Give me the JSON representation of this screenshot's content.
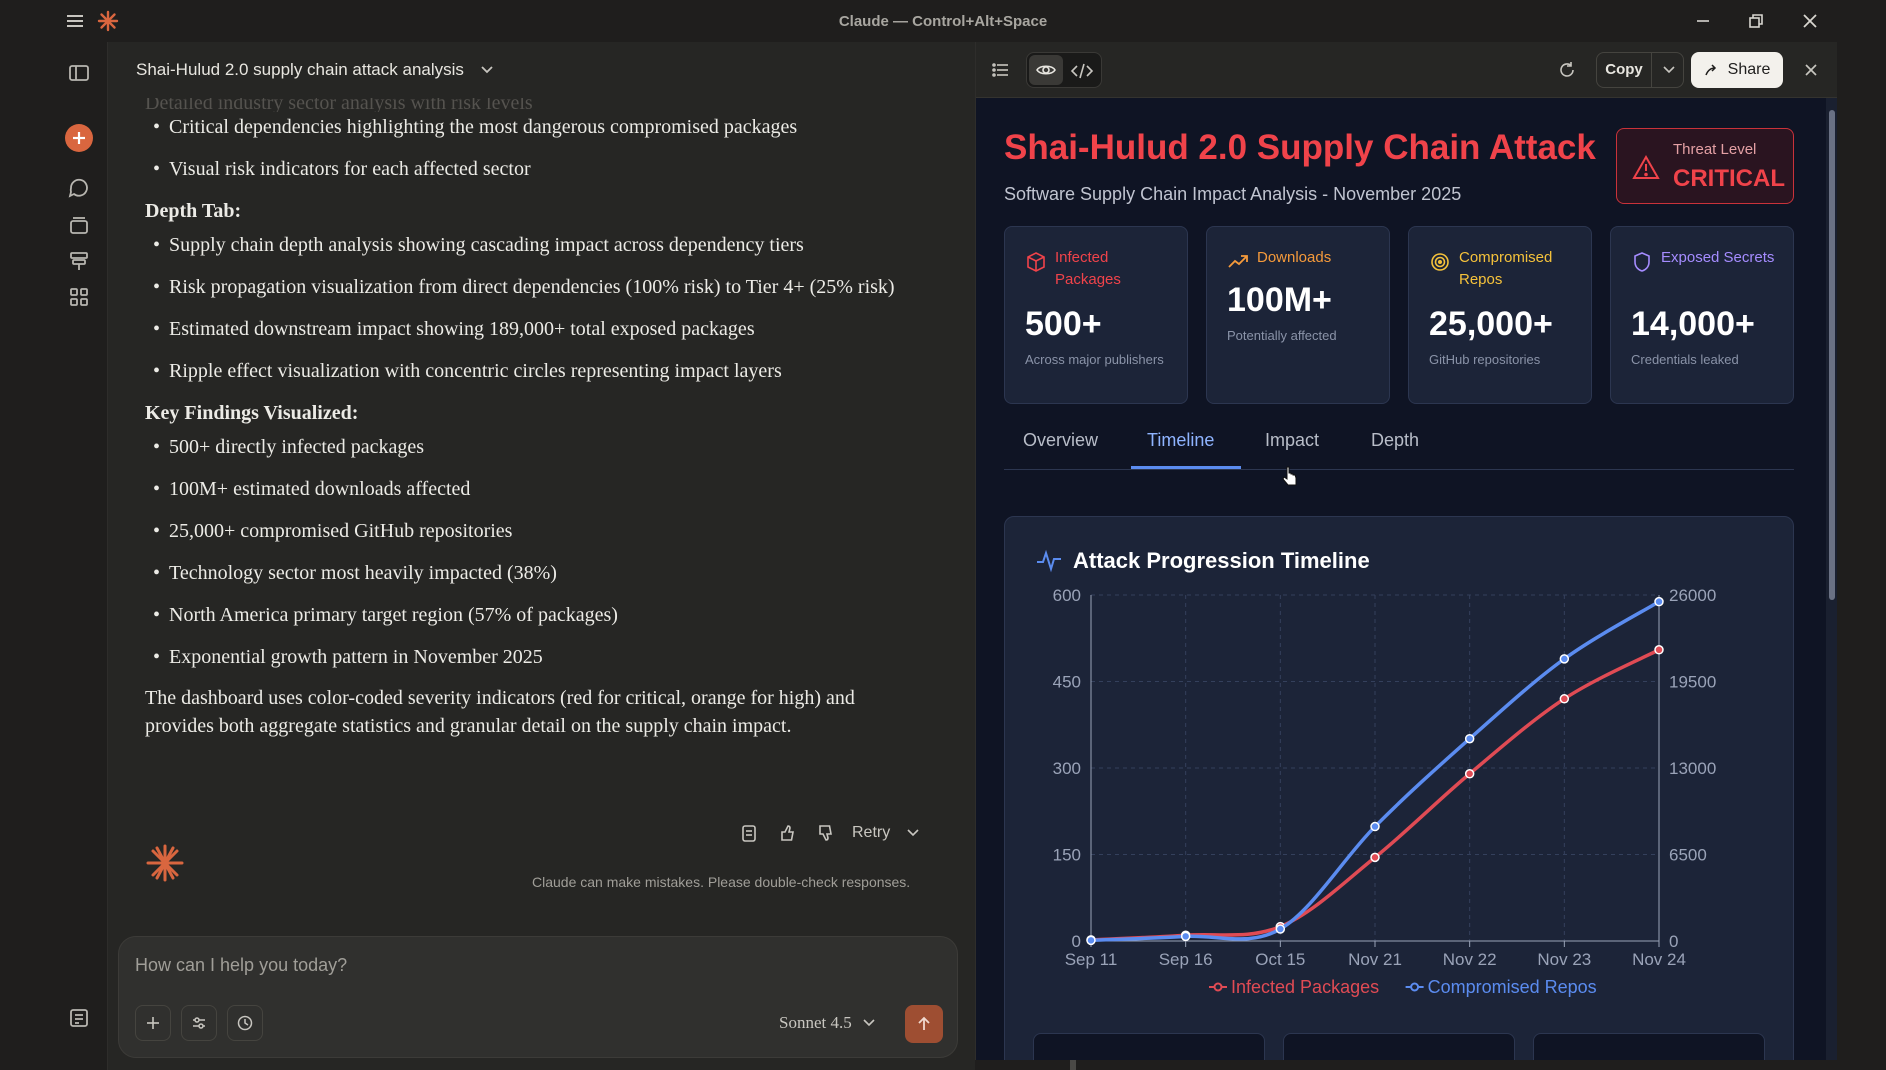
{
  "window": {
    "title": "Claude — Control+Alt+Space"
  },
  "chat": {
    "header_title": "Shai-Hulud 2.0 supply chain attack analysis",
    "faded_line": "Detailed industry sector analysis with risk levels",
    "top_items": [
      "Critical dependencies highlighting the most dangerous compromised packages",
      "Visual risk indicators for each affected sector"
    ],
    "depth_heading": "Depth Tab:",
    "depth_items": [
      "Supply chain depth analysis showing cascading impact across dependency tiers",
      "Risk propagation visualization from direct dependencies (100% risk) to Tier 4+ (25% risk)",
      "Estimated downstream impact showing 189,000+ total exposed packages",
      "Ripple effect visualization with concentric circles representing impact layers"
    ],
    "findings_heading": "Key Findings Visualized:",
    "findings_items": [
      "500+ directly infected packages",
      "100M+ estimated downloads affected",
      "25,000+ compromised GitHub repositories",
      "Technology sector most heavily impacted (38%)",
      "North America primary target region (57% of packages)",
      "Exponential growth pattern in November 2025"
    ],
    "closing": "The dashboard uses color-coded severity indicators (red for critical, orange for high) and provides both aggregate statistics and granular detail on the supply chain impact.",
    "retry_label": "Retry",
    "disclaimer": "Claude can make mistakes. Please double-check responses.",
    "composer_placeholder": "How can I help you today?",
    "model_label": "Sonnet 4.5"
  },
  "panel": {
    "copy_label": "Copy",
    "share_label": "Share"
  },
  "dashboard": {
    "title": "Shai-Hulud 2.0 Supply Chain Attack",
    "subtitle": "Software Supply Chain Impact Analysis - November 2025",
    "threat_label": "Threat Level",
    "threat_value": "CRITICAL",
    "stats": [
      {
        "label": "Infected Packages",
        "value": "500+",
        "note": "Across major publishers",
        "color": "#f0434a"
      },
      {
        "label": "Downloads",
        "value": "100M+",
        "note": "Potentially affected",
        "color": "#f59a3b"
      },
      {
        "label": "Compromised Repos",
        "value": "25,000+",
        "note": "GitHub repositories",
        "color": "#f5c23b"
      },
      {
        "label": "Exposed Secrets",
        "value": "14,000+",
        "note": "Credentials leaked",
        "color": "#a58cff"
      }
    ],
    "tabs": [
      "Overview",
      "Timeline",
      "Impact",
      "Depth"
    ],
    "active_tab": "Timeline",
    "chart_title": "Attack Progression Timeline"
  },
  "chart_data": {
    "type": "line",
    "title": "Attack Progression Timeline",
    "categories": [
      "Sep 11",
      "Sep 16",
      "Oct 15",
      "Nov 21",
      "Nov 22",
      "Nov 23",
      "Nov 24"
    ],
    "y_left": {
      "ticks": [
        0,
        150,
        300,
        450,
        600
      ],
      "range": [
        0,
        600
      ]
    },
    "y_right": {
      "ticks": [
        0,
        6500,
        13000,
        19500,
        26000
      ],
      "range": [
        0,
        26000
      ]
    },
    "grid": true,
    "legend_position": "bottom",
    "series": [
      {
        "name": "Infected Packages",
        "axis": "left",
        "color": "#e04b54",
        "values": [
          2,
          10,
          25,
          145,
          290,
          420,
          505
        ]
      },
      {
        "name": "Compromised Repos",
        "axis": "right",
        "color": "#5b8cf0",
        "values": [
          50,
          350,
          900,
          8600,
          15200,
          21200,
          25500
        ]
      }
    ]
  }
}
